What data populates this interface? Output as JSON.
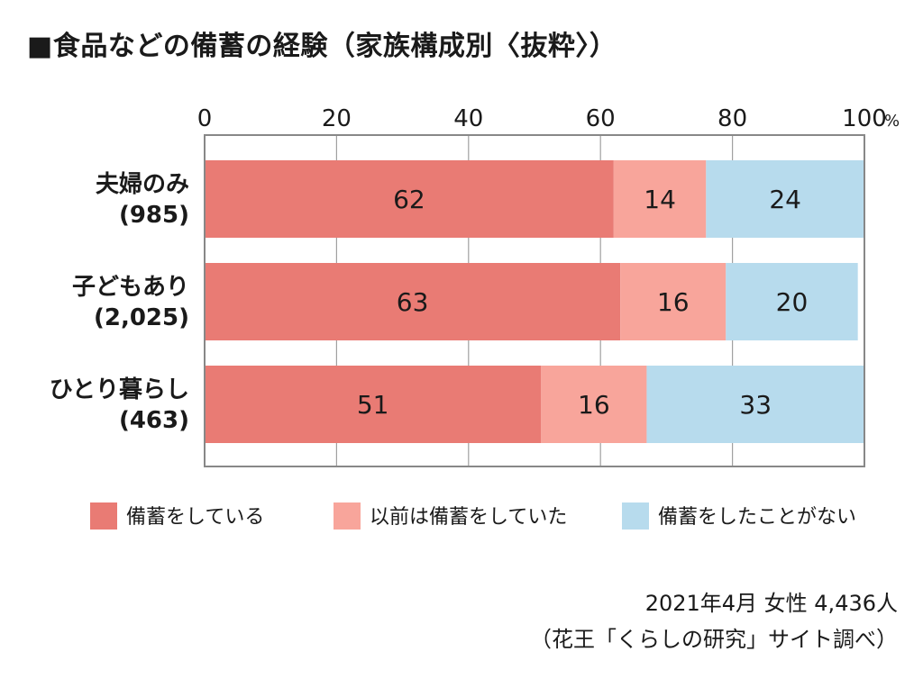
{
  "title": "■食品などの備蓄の経験（家族構成別〈抜粋〉）",
  "chart_data": {
    "type": "bar",
    "orientation": "horizontal",
    "stacked": true,
    "xlim": [
      0,
      100
    ],
    "x_ticks": [
      "0",
      "20",
      "40",
      "60",
      "80",
      "100"
    ],
    "x_unit": "%",
    "grid": true,
    "categories": [
      {
        "name": "夫婦のみ",
        "n": "(985)"
      },
      {
        "name": "子どもあり",
        "n": "(2,025)"
      },
      {
        "name": "ひとり暮らし",
        "n": "(463)"
      }
    ],
    "series": [
      {
        "name": "備蓄をしている",
        "color": "#e97b74",
        "values": [
          62,
          63,
          51
        ]
      },
      {
        "name": "以前は備蓄をしていた",
        "color": "#f8a59b",
        "values": [
          14,
          16,
          16
        ]
      },
      {
        "name": "備蓄をしたことがない",
        "color": "#b7dbed",
        "values": [
          24,
          20,
          33
        ]
      }
    ],
    "legend_position": "bottom"
  },
  "footer": {
    "note": "2021年4月 女性 4,436人",
    "source": "（花王「くらしの研究」サイト調べ）"
  }
}
